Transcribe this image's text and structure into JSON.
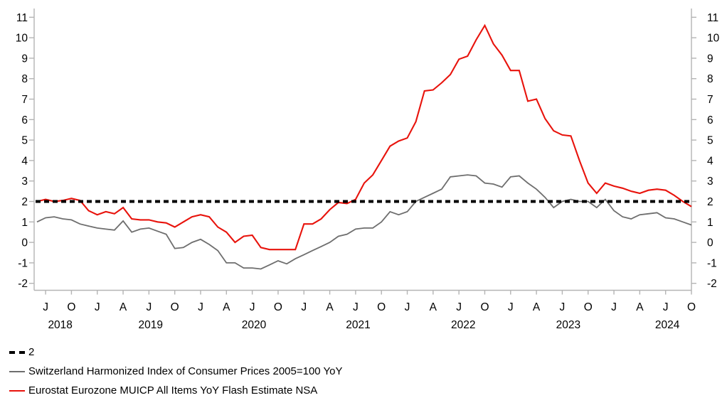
{
  "chart_data": {
    "type": "line",
    "title": "",
    "x_unit": "month",
    "x_start": "2018-06",
    "x_end": "2024-10",
    "ylim": [
      -2,
      11
    ],
    "y_ticks": [
      -2,
      -1,
      0,
      1,
      2,
      3,
      4,
      5,
      6,
      7,
      8,
      9,
      10,
      11
    ],
    "grid": false,
    "axis_color": "#b4b4b4",
    "x_ticks": {
      "indices": [
        1,
        4,
        7,
        10,
        13,
        16,
        19,
        22,
        25,
        28,
        31,
        34,
        37,
        40,
        43,
        46,
        49,
        52,
        55,
        58,
        61,
        64,
        67,
        70,
        73,
        76
      ],
      "labels": [
        "J",
        "O",
        "J",
        "A",
        "J",
        "O",
        "J",
        "A",
        "J",
        "O",
        "J",
        "A",
        "J",
        "O",
        "J",
        "A",
        "J",
        "O",
        "J",
        "A",
        "J",
        "O",
        "J",
        "A",
        "J",
        "O"
      ]
    },
    "year_ticks": [
      {
        "label": "2018",
        "center_index": 2.7
      },
      {
        "label": "2019",
        "center_index": 13.2
      },
      {
        "label": "2020",
        "center_index": 25.2
      },
      {
        "label": "2021",
        "center_index": 37.3
      },
      {
        "label": "2022",
        "center_index": 49.5
      },
      {
        "label": "2023",
        "center_index": 61.7
      },
      {
        "label": "2024",
        "center_index": 73.2
      }
    ],
    "reference_line": {
      "label": "2",
      "value": 2,
      "style": "dashed",
      "color": "#000000"
    },
    "series": [
      {
        "name": "Switzerland Harmonized Index of Consumer Prices 2005=100 YoY",
        "color": "#6e6e6e",
        "values": [
          1.0,
          1.2,
          1.25,
          1.15,
          1.1,
          0.9,
          0.8,
          0.7,
          0.65,
          0.6,
          1.05,
          0.5,
          0.65,
          0.7,
          0.55,
          0.4,
          -0.3,
          -0.25,
          0.0,
          0.15,
          -0.1,
          -0.4,
          -1.0,
          -1.0,
          -1.25,
          -1.25,
          -1.3,
          -1.1,
          -0.9,
          -1.05,
          -0.8,
          -0.6,
          -0.4,
          -0.2,
          0.0,
          0.3,
          0.4,
          0.65,
          0.7,
          0.7,
          1.0,
          1.5,
          1.35,
          1.5,
          2.0,
          2.2,
          2.4,
          2.6,
          3.2,
          3.25,
          3.3,
          3.25,
          2.9,
          2.85,
          2.7,
          3.2,
          3.25,
          2.9,
          2.6,
          2.2,
          1.7,
          2.0,
          2.1,
          2.0,
          2.0,
          1.7,
          2.1,
          1.55,
          1.25,
          1.15,
          1.35,
          1.4,
          1.45,
          1.2,
          1.15,
          1.0,
          0.85
        ]
      },
      {
        "name": "Eurostat Eurozone MUICP All Items YoY Flash Estimate NSA",
        "color": "#e8130c",
        "values": [
          2.0,
          2.1,
          2.0,
          2.05,
          2.15,
          2.05,
          1.55,
          1.35,
          1.5,
          1.4,
          1.7,
          1.15,
          1.1,
          1.1,
          1.0,
          0.95,
          0.75,
          1.0,
          1.25,
          1.35,
          1.25,
          0.75,
          0.5,
          0.0,
          0.3,
          0.35,
          -0.25,
          -0.35,
          -0.35,
          -0.35,
          -0.35,
          0.9,
          0.9,
          1.15,
          1.6,
          1.95,
          1.9,
          2.1,
          2.9,
          3.3,
          4.0,
          4.7,
          4.95,
          5.1,
          5.9,
          7.4,
          7.45,
          7.8,
          8.2,
          8.95,
          9.1,
          9.9,
          10.6,
          9.7,
          9.15,
          8.4,
          8.4,
          6.9,
          7.0,
          6.05,
          5.45,
          5.25,
          5.2,
          4.0,
          2.9,
          2.4,
          2.9,
          2.75,
          2.65,
          2.5,
          2.4,
          2.55,
          2.6,
          2.55,
          2.3,
          2.0,
          1.75
        ]
      }
    ],
    "legend_position": "bottom-left"
  }
}
